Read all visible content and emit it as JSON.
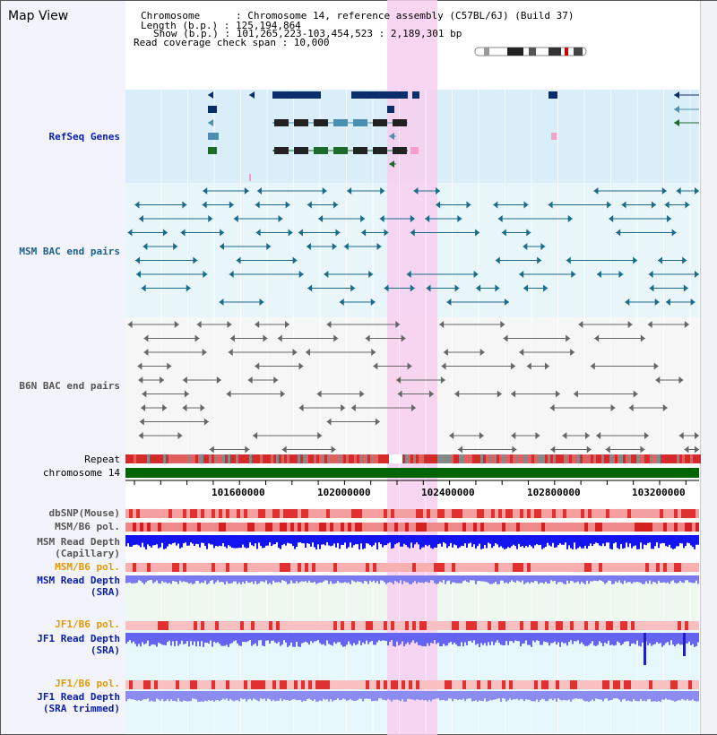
{
  "title": "Map View",
  "header": {
    "chromosome_line": "Chromosome      : Chromosome 14, reference assembly (C57BL/6J) (Build 37)",
    "length_line": "Length (b.p.) : 125,194,864",
    "show_line": "Show (b.p.) : 101,265,223-103,454,523 : 2,189,301 bp",
    "coverage_line": "Read coverage check span : 10,000"
  },
  "tracks": {
    "refseq": "RefSeq Genes",
    "msm_bac": "MSM BAC end pairs",
    "b6n_bac": "B6N BAC end pairs",
    "repeat": "Repeat",
    "chromosome": "chromosome 14",
    "dbsnp": "dbSNP(Mouse)",
    "msm_b6_pol": "MSM/B6 pol.",
    "msm_read_depth_cap": "MSM Read Depth",
    "capillary": "(Capillary)",
    "msm_b6_pol_sra": "MSM/B6 pol.",
    "msm_read_depth_sra": "MSM Read Depth",
    "sra1": "(SRA)",
    "jf1_b6_pol": "JF1/B6 pol.",
    "jf1_read_depth": "JF1 Read Depth",
    "sra2": "(SRA)",
    "jf1_b6_pol2": "JF1/B6 pol.",
    "jf1_read_depth_trim": "JF1 Read Depth",
    "sra_trimmed": "(SRA trimmed)"
  },
  "axis": {
    "ticks": [
      "101600000",
      "102000000",
      "102400000",
      "102800000",
      "103200000"
    ]
  },
  "colors": {
    "refseq_bg": "#d9eef9",
    "msm_bg": "#e8f6fa",
    "highlight": "#f7cfee",
    "chromosome_bar": "#006400",
    "gene_dark": "#0a2d6b",
    "gene_teal": "#4a8fb0",
    "gene_green": "#1d6b2a"
  },
  "selection_range": "102,133,... highlighted region"
}
